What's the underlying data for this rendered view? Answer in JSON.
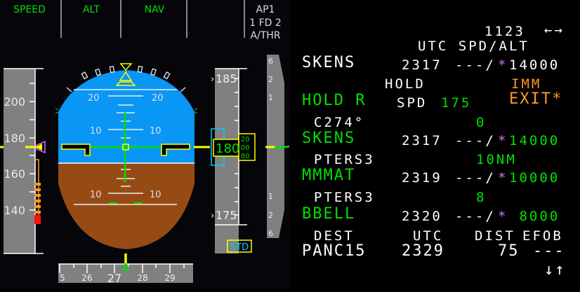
{
  "fma": {
    "col1": "SPEED",
    "col2": "ALT",
    "col3": "NAV",
    "col4": "",
    "col5_line1": "AP1",
    "col5_line2": "1 FD 2",
    "col5_line3": "A/THR"
  },
  "speed_tape": {
    "labels": [
      "200",
      "180",
      "160",
      "140"
    ],
    "current": 176
  },
  "attitude": {
    "pitch_labels": [
      "20",
      "20",
      "10",
      "10",
      "10",
      "10"
    ]
  },
  "altitude_tape": {
    "upper_label": "185",
    "lower_label": "175",
    "current_hundreds": "180",
    "drum": [
      "20",
      "00",
      "80"
    ],
    "baro": "STD"
  },
  "vs_scale": {
    "labels": [
      "6",
      "2",
      "1",
      "1",
      "2",
      "6"
    ]
  },
  "heading": {
    "labels": [
      "5",
      "26",
      "27",
      "28",
      "29"
    ]
  },
  "colors": {
    "sky": "#0a96f5",
    "ground": "#964b14",
    "tape": "#808080",
    "green": "#00e000",
    "amber": "#ff9a1f",
    "magenta": "#e070ff",
    "cyan": "#00d0f0",
    "yellow": "#ffff00"
  },
  "mcdu": {
    "header": {
      "time": "1123",
      "arrows": "←→",
      "cols": "UTC SPD/ALT"
    },
    "rows": [
      {
        "name": "SKENS",
        "utc": "2317",
        "spd": "---/",
        "star": "*",
        "alt": "14000"
      },
      {
        "hold_label": "HOLD",
        "imm": "IMM"
      },
      {
        "name": "HOLD R",
        "spd_label": "SPD",
        "spd": "175",
        "exit": "EXIT*"
      },
      {
        "name": "C274°",
        "value": "0"
      },
      {
        "name": "SKENS",
        "utc": "2317",
        "spd": "---/",
        "star": "*",
        "alt": "14000"
      },
      {
        "name": "PTERS3",
        "value": "10NM"
      },
      {
        "name": "MMMAT",
        "utc": "2319",
        "spd": "---/",
        "star": "*",
        "alt": "10000"
      },
      {
        "name": "PTERS3",
        "value": "8"
      },
      {
        "name": "BBELL",
        "utc": "2320",
        "spd": "---/",
        "star": "*",
        "alt": " 8000"
      }
    ],
    "footer": {
      "dest_label": "DEST",
      "utc_label": "UTC",
      "dist_label": "DIST",
      "efob_label": "EFOB",
      "dest": "PANC15",
      "utc": "2329",
      "dist": "75",
      "efob": "---",
      "scroll": "↓↑"
    }
  }
}
